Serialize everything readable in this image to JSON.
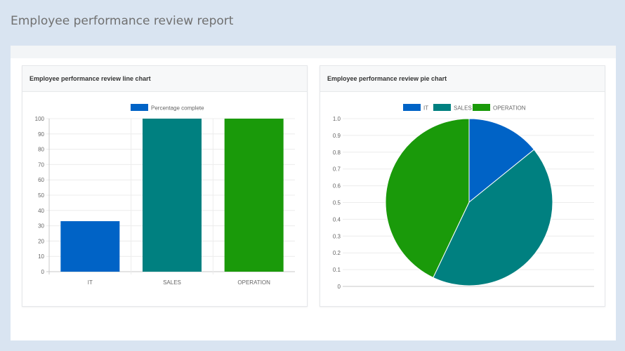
{
  "page": {
    "title": "Employee performance review report"
  },
  "panels": {
    "bar": {
      "title": "Employee performance review line chart"
    },
    "pie": {
      "title": "Employee performance review pie chart"
    }
  },
  "chart_data": [
    {
      "type": "bar",
      "title": "",
      "categories": [
        "IT",
        "SALES",
        "OPERATION"
      ],
      "series": [
        {
          "name": "Percentage complete",
          "values": [
            33,
            100,
            100
          ],
          "colors": [
            "#0063c6",
            "#008080",
            "#1a9a0a"
          ]
        }
      ],
      "legend": {
        "position": "top",
        "label": "Percentage complete",
        "color": "#0063c6"
      },
      "ylim": [
        0,
        100
      ],
      "yticks": [
        "0",
        "10",
        "20",
        "30",
        "40",
        "50",
        "60",
        "70",
        "80",
        "90",
        "100"
      ],
      "grid": true
    },
    {
      "type": "pie",
      "title": "",
      "labels": [
        "IT",
        "SALES",
        "OPERATION"
      ],
      "values": [
        33,
        100,
        100
      ],
      "colors": [
        "#0063c6",
        "#008080",
        "#1a9a0a"
      ],
      "legend": {
        "position": "top"
      },
      "yticks": [
        "0",
        "0.1",
        "0.2",
        "0.3",
        "0.4",
        "0.5",
        "0.6",
        "0.7",
        "0.8",
        "0.9",
        "1.0"
      ],
      "grid": true
    }
  ]
}
